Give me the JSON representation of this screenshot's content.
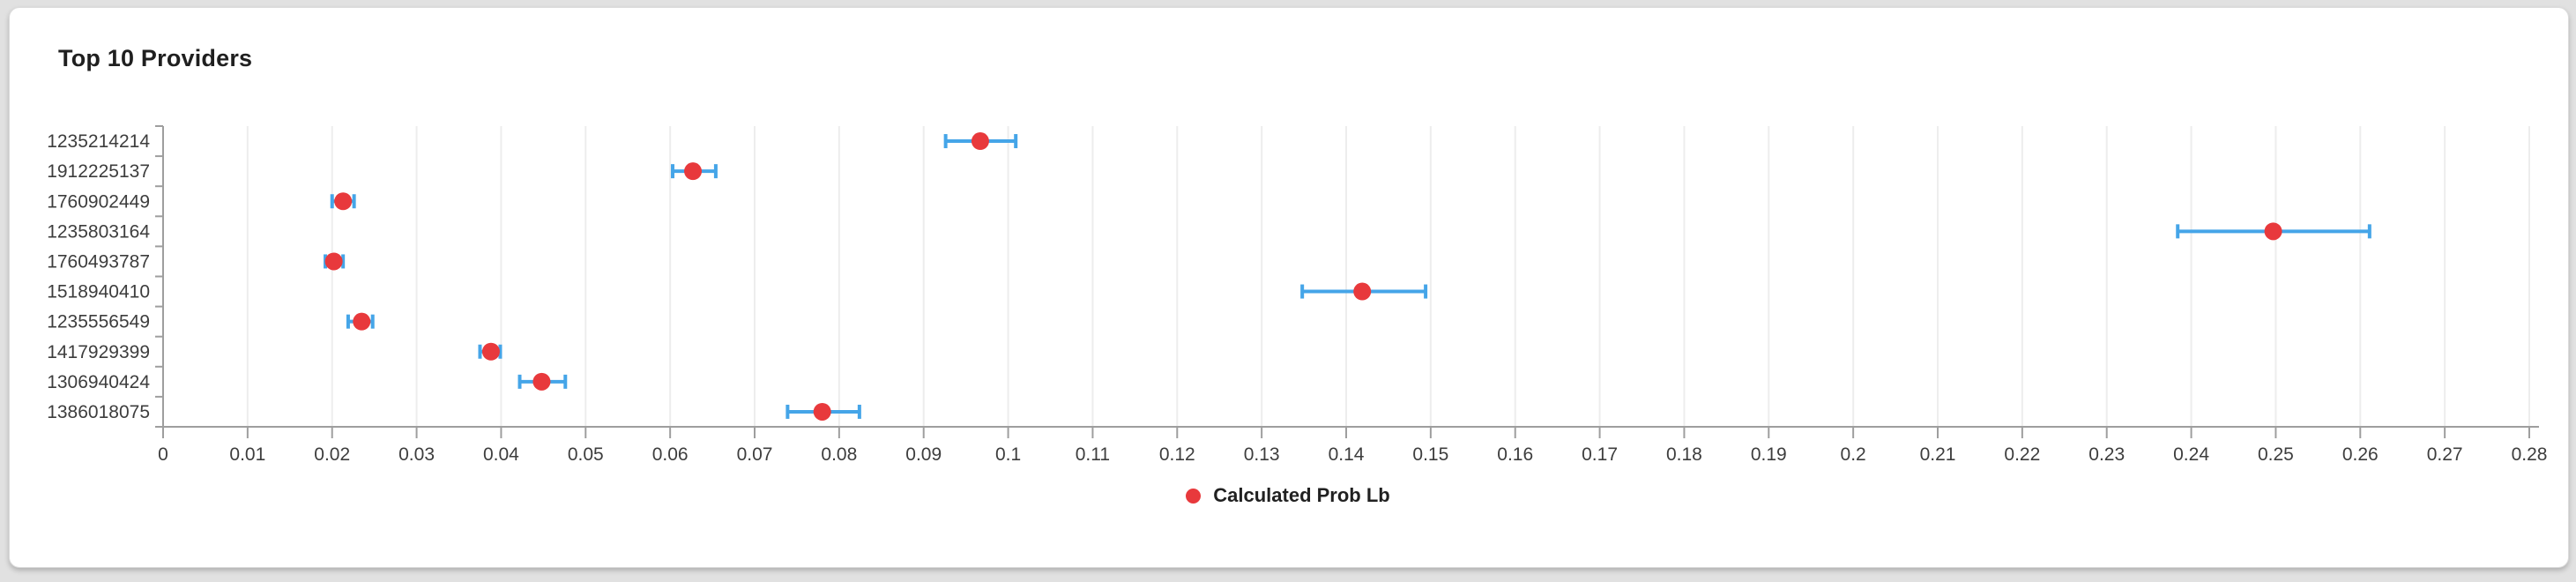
{
  "card": {
    "title": "Top 10 Providers"
  },
  "legend": {
    "items": [
      {
        "label": "Calculated Prob Lb",
        "color": "#e8393c"
      }
    ]
  },
  "colors": {
    "page_background": "#e1e1e1",
    "card_background": "#ffffff",
    "marker_red": "#e8393c",
    "error_bar_blue": "#45a5e8",
    "gridline": "#ededed",
    "axis": "#9e9e9e",
    "tick_text": "#3d3d3d",
    "title_text": "#1f1f1f"
  },
  "chart_data": {
    "type": "scatter",
    "subtype": "horizontal-dot-plot-with-error-bars",
    "title": "Top 10 Providers",
    "xlabel": "",
    "ylabel": "",
    "xlim": [
      0,
      0.28
    ],
    "grid": true,
    "legend_position": "bottom",
    "x_ticks": [
      {
        "value": 0.0,
        "label": "0"
      },
      {
        "value": 0.01,
        "label": "0.01"
      },
      {
        "value": 0.02,
        "label": "0.02"
      },
      {
        "value": 0.03,
        "label": "0.03"
      },
      {
        "value": 0.04,
        "label": "0.04"
      },
      {
        "value": 0.05,
        "label": "0.05"
      },
      {
        "value": 0.06,
        "label": "0.06"
      },
      {
        "value": 0.07,
        "label": "0.07"
      },
      {
        "value": 0.08,
        "label": "0.08"
      },
      {
        "value": 0.09,
        "label": "0.09"
      },
      {
        "value": 0.1,
        "label": "0.1"
      },
      {
        "value": 0.11,
        "label": "0.11"
      },
      {
        "value": 0.12,
        "label": "0.12"
      },
      {
        "value": 0.13,
        "label": "0.13"
      },
      {
        "value": 0.14,
        "label": "0.14"
      },
      {
        "value": 0.15,
        "label": "0.15"
      },
      {
        "value": 0.16,
        "label": "0.16"
      },
      {
        "value": 0.17,
        "label": "0.17"
      },
      {
        "value": 0.18,
        "label": "0.18"
      },
      {
        "value": 0.19,
        "label": "0.19"
      },
      {
        "value": 0.2,
        "label": "0.2"
      },
      {
        "value": 0.21,
        "label": "0.21"
      },
      {
        "value": 0.22,
        "label": "0.22"
      },
      {
        "value": 0.23,
        "label": "0.23"
      },
      {
        "value": 0.24,
        "label": "0.24"
      },
      {
        "value": 0.25,
        "label": "0.25"
      },
      {
        "value": 0.26,
        "label": "0.26"
      },
      {
        "value": 0.27,
        "label": "0.27"
      },
      {
        "value": 0.28,
        "label": "0.28"
      }
    ],
    "series": [
      {
        "name": "Calculated Prob Lb",
        "marker_color": "#e8393c",
        "error_bar_color": "#45a5e8",
        "points": [
          {
            "category": "1235214214",
            "value": 0.0967,
            "error_low": 0.0926,
            "error_high": 0.1009
          },
          {
            "category": "1912225137",
            "value": 0.0627,
            "error_low": 0.0603,
            "error_high": 0.0654
          },
          {
            "category": "1760902449",
            "value": 0.0213,
            "error_low": 0.02,
            "error_high": 0.0226
          },
          {
            "category": "1235803164",
            "value": 0.2497,
            "error_low": 0.2384,
            "error_high": 0.2611
          },
          {
            "category": "1760493787",
            "value": 0.0202,
            "error_low": 0.0192,
            "error_high": 0.0213
          },
          {
            "category": "1518940410",
            "value": 0.1419,
            "error_low": 0.1348,
            "error_high": 0.1494
          },
          {
            "category": "1235556549",
            "value": 0.0235,
            "error_low": 0.0219,
            "error_high": 0.0248
          },
          {
            "category": "1417929399",
            "value": 0.0388,
            "error_low": 0.0375,
            "error_high": 0.0399
          },
          {
            "category": "1306940424",
            "value": 0.0448,
            "error_low": 0.0422,
            "error_high": 0.0476
          },
          {
            "category": "1386018075",
            "value": 0.078,
            "error_low": 0.0739,
            "error_high": 0.0824
          }
        ]
      }
    ]
  }
}
